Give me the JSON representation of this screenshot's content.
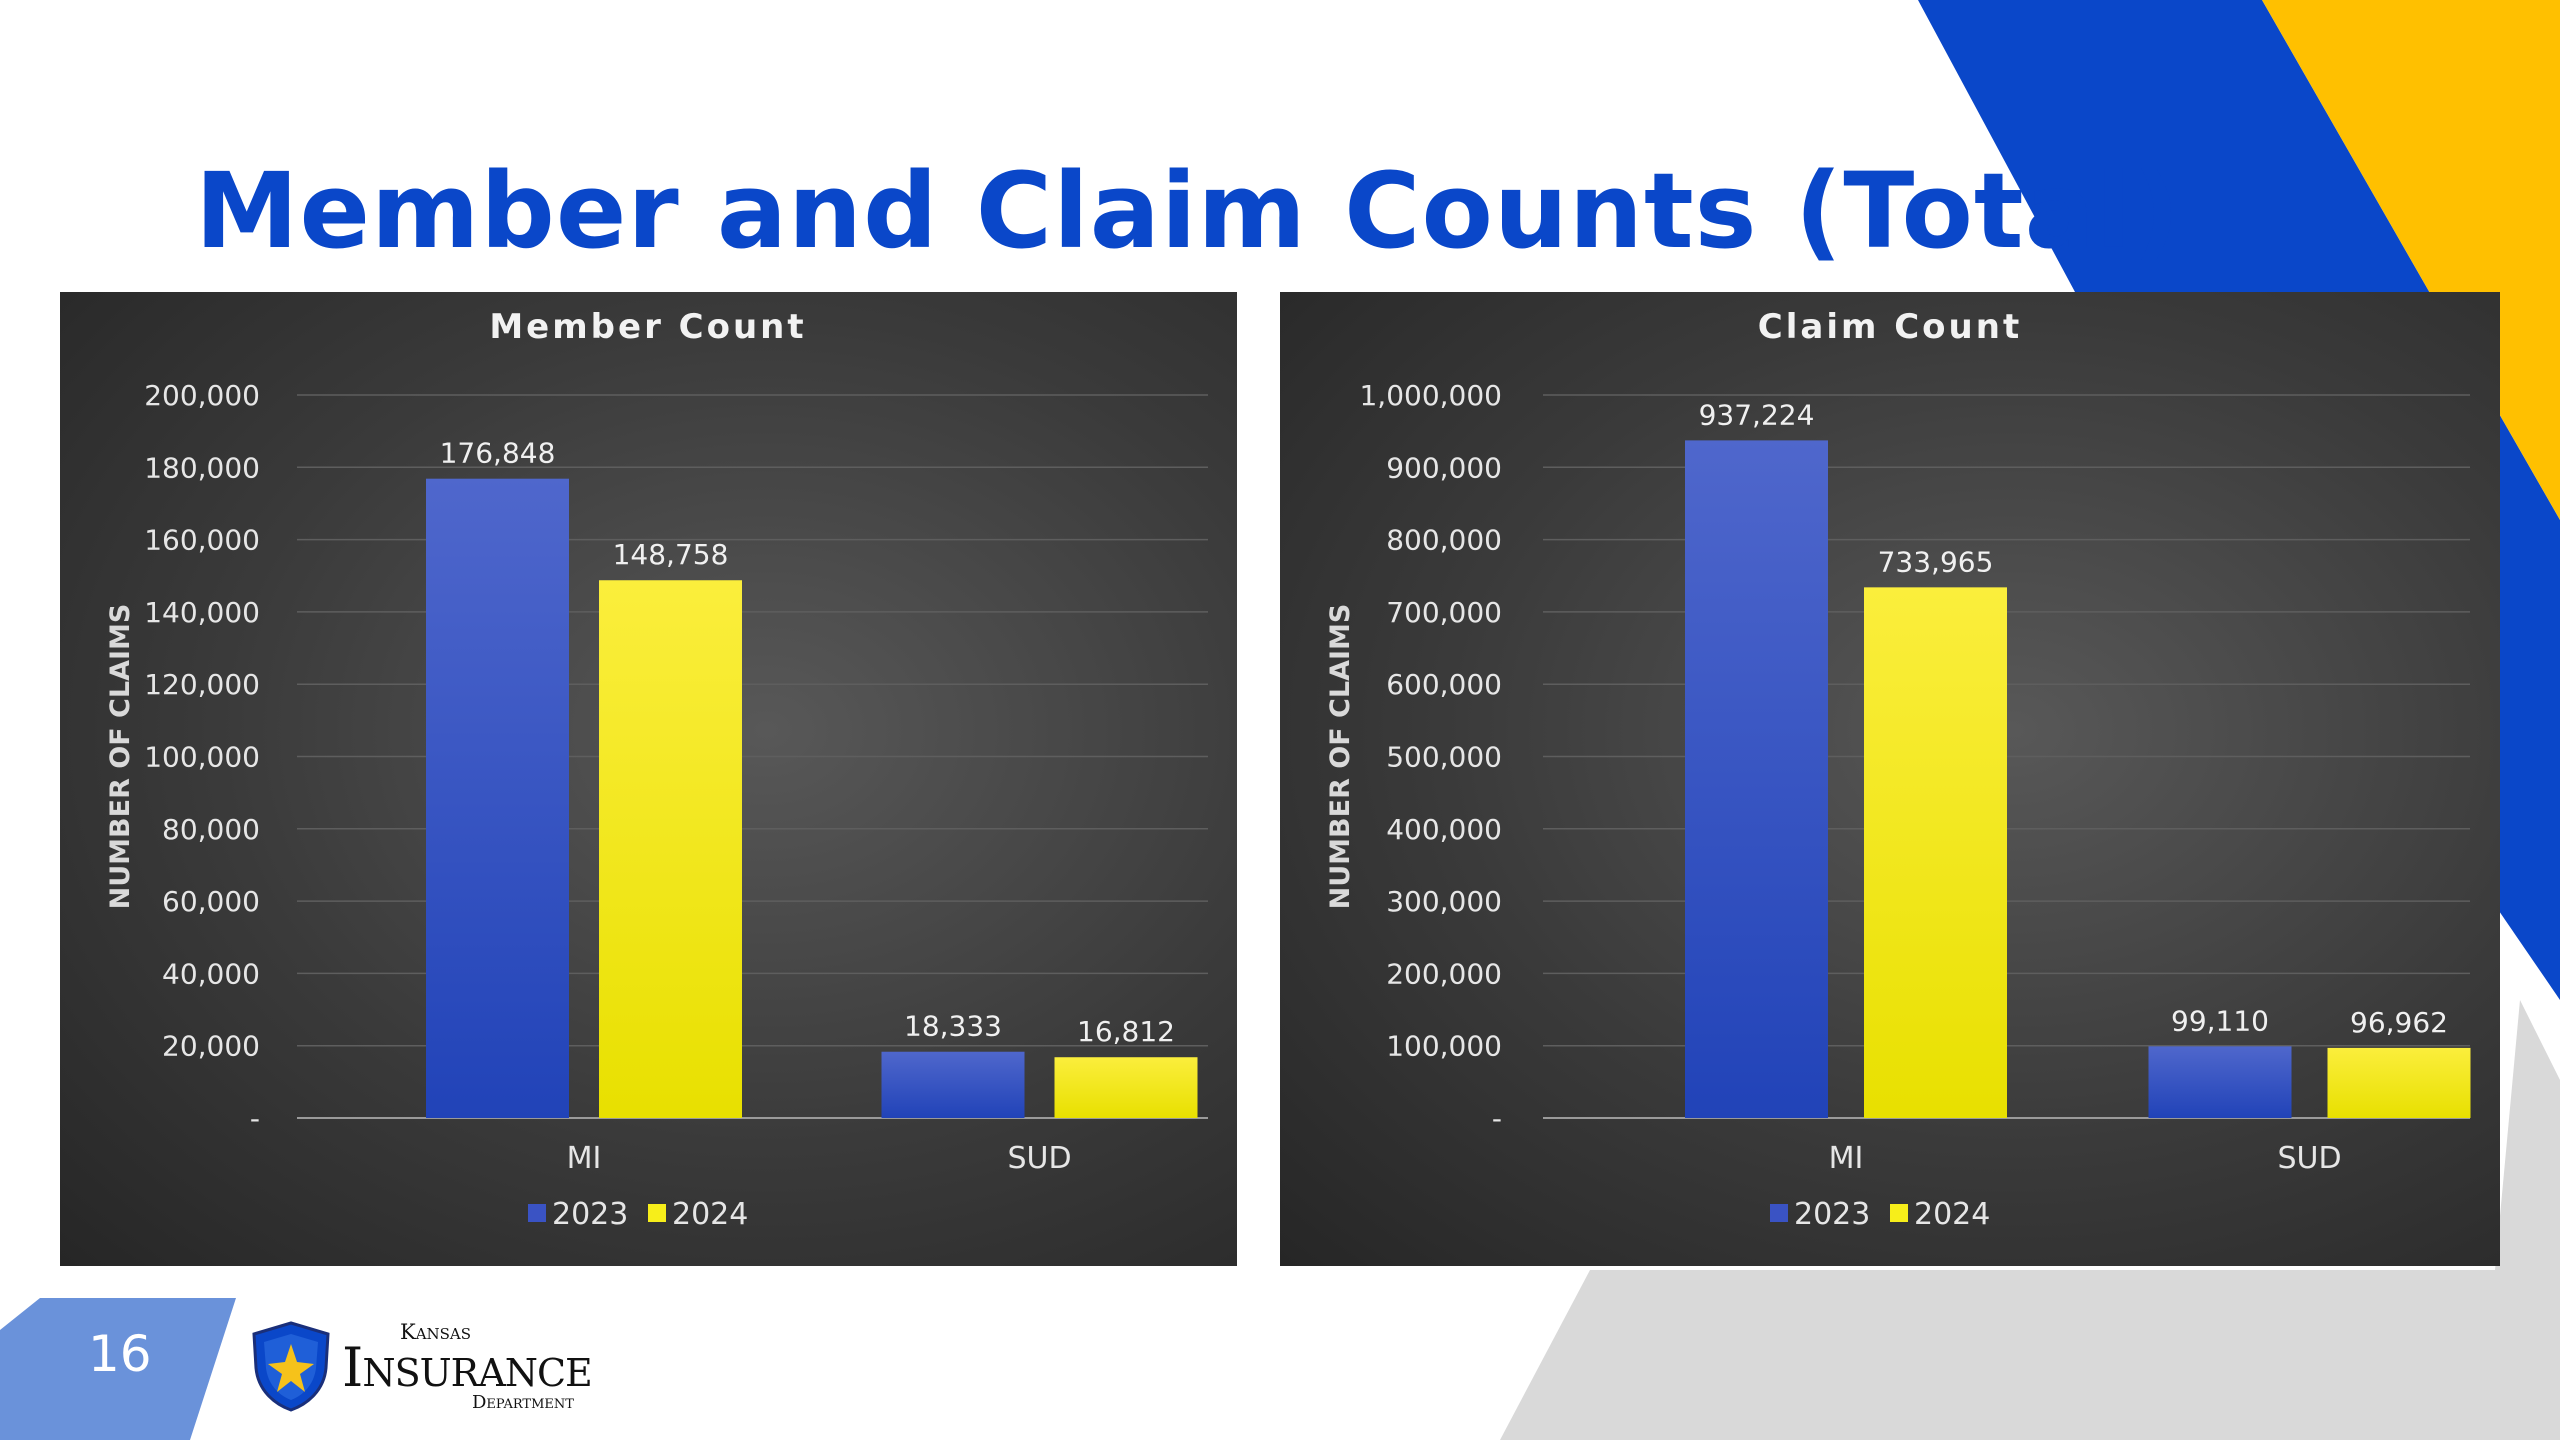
{
  "slide": {
    "title": "Member and Claim Counts (Total)",
    "page_number": "16"
  },
  "logo": {
    "top": "Kansas",
    "main": "Insurance",
    "bottom": "Department"
  },
  "colors": {
    "title": "#0a47c9",
    "accent_blue": "#0a47c9",
    "accent_yellow": "#ffc000",
    "series_2023": "#3a53c4",
    "series_2024": "#f7ee1a",
    "page_badge": "#6a92da"
  },
  "chart_data": [
    {
      "type": "bar",
      "title": "Member Count",
      "ylabel": "NUMBER OF CLAIMS",
      "categories": [
        "MI",
        "SUD"
      ],
      "series": [
        {
          "name": "2023",
          "values": [
            176848,
            18333
          ],
          "labels": [
            "176,848",
            "18,333"
          ]
        },
        {
          "name": "2024",
          "values": [
            148758,
            16812
          ],
          "labels": [
            "148,758",
            "16,812"
          ]
        }
      ],
      "ylim": [
        0,
        200000
      ],
      "yticks": [
        "-",
        "20,000",
        "40,000",
        "60,000",
        "80,000",
        "100,000",
        "120,000",
        "140,000",
        "160,000",
        "180,000",
        "200,000"
      ],
      "grid": true,
      "legend": "bottom"
    },
    {
      "type": "bar",
      "title": "Claim Count",
      "ylabel": "NUMBER OF CLAIMS",
      "categories": [
        "MI",
        "SUD"
      ],
      "series": [
        {
          "name": "2023",
          "values": [
            937224,
            99110
          ],
          "labels": [
            "937,224",
            "99,110"
          ]
        },
        {
          "name": "2024",
          "values": [
            733965,
            96962
          ],
          "labels": [
            "733,965",
            "96,962"
          ]
        }
      ],
      "ylim": [
        0,
        1000000
      ],
      "yticks": [
        "-",
        "100,000",
        "200,000",
        "300,000",
        "400,000",
        "500,000",
        "600,000",
        "700,000",
        "800,000",
        "900,000",
        "1,000,000"
      ],
      "grid": true,
      "legend": "bottom"
    }
  ]
}
